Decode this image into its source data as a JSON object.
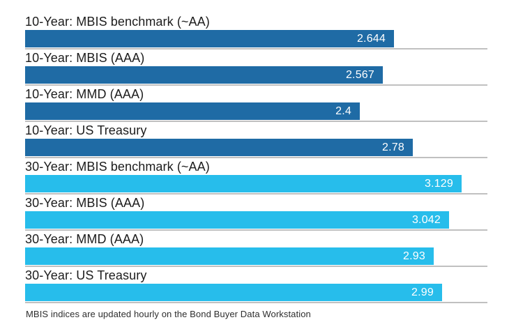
{
  "chart_data": {
    "type": "bar",
    "orientation": "horizontal",
    "title": "",
    "xlabel": "",
    "ylabel": "",
    "xlim": [
      0,
      3.315
    ],
    "grid": false,
    "legend": false,
    "categories": [
      "10-Year: MBIS benchmark (~AA)",
      "10-Year: MBIS (AAA)",
      "10-Year: MMD (AAA)",
      "10-Year: US Treasury",
      "30-Year: MBIS benchmark (~AA)",
      "30-Year: MBIS (AAA)",
      "30-Year: MMD (AAA)",
      "30-Year: US Treasury"
    ],
    "values": [
      2.644,
      2.567,
      2.4,
      2.78,
      3.129,
      3.042,
      2.93,
      2.99
    ],
    "value_labels": [
      "2.644",
      "2.567",
      "2.4",
      "2.78",
      "3.129",
      "3.042",
      "2.93",
      "2.99"
    ],
    "bar_colors": [
      "#1F6BA5",
      "#1F6BA5",
      "#1F6BA5",
      "#1F6BA5",
      "#27BDEB",
      "#27BDEB",
      "#27BDEB",
      "#27BDEB"
    ],
    "groups": [
      {
        "name": "10-Year",
        "color": "#1F6BA5"
      },
      {
        "name": "30-Year",
        "color": "#27BDEB"
      }
    ],
    "value_label_position": "inside-right",
    "value_label_color": "#ffffff"
  },
  "footer": {
    "note": "MBIS indices are updated hourly on the Bond Buyer Data Workstation"
  },
  "colors": {
    "dark_blue": "#1F6BA5",
    "light_blue": "#27BDEB",
    "separator": "#c0c0c0",
    "label_text": "#1c1c1c",
    "background": "#ffffff"
  }
}
